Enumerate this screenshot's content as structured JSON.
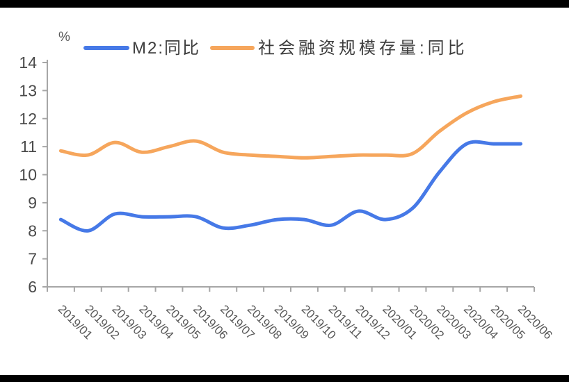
{
  "figure": {
    "unit_label": "%",
    "border_bar_color": "#000000",
    "axis_color": "#a6a6a6",
    "background": "#ffffff"
  },
  "chart_data": {
    "type": "line",
    "title": "",
    "xlabel": "",
    "ylabel": "%",
    "ylim": [
      6,
      14
    ],
    "yticks": [
      6,
      7,
      8,
      9,
      10,
      11,
      12,
      13,
      14
    ],
    "grid": false,
    "smooth": true,
    "legend_position": "top",
    "categories": [
      "2019/01",
      "2019/02",
      "2019/03",
      "2019/04",
      "2019/05",
      "2019/06",
      "2019/07",
      "2019/08",
      "2019/09",
      "2019/10",
      "2019/11",
      "2019/12",
      "2020/01",
      "2020/02",
      "2020/03",
      "2020/04",
      "2020/05",
      "2020/06"
    ],
    "series": [
      {
        "name": "M2:同比",
        "color": "#4679e7",
        "values": [
          8.4,
          8.0,
          8.6,
          8.5,
          8.5,
          8.5,
          8.1,
          8.2,
          8.4,
          8.4,
          8.2,
          8.7,
          8.4,
          8.8,
          10.1,
          11.1,
          11.1,
          11.1
        ]
      },
      {
        "name": "社会融资规模存量:同比",
        "color": "#f6a65c",
        "values": [
          10.85,
          10.7,
          11.15,
          10.8,
          11.0,
          11.2,
          10.8,
          10.7,
          10.65,
          10.6,
          10.65,
          10.7,
          10.7,
          10.75,
          11.55,
          12.2,
          12.6,
          12.8
        ]
      }
    ]
  }
}
